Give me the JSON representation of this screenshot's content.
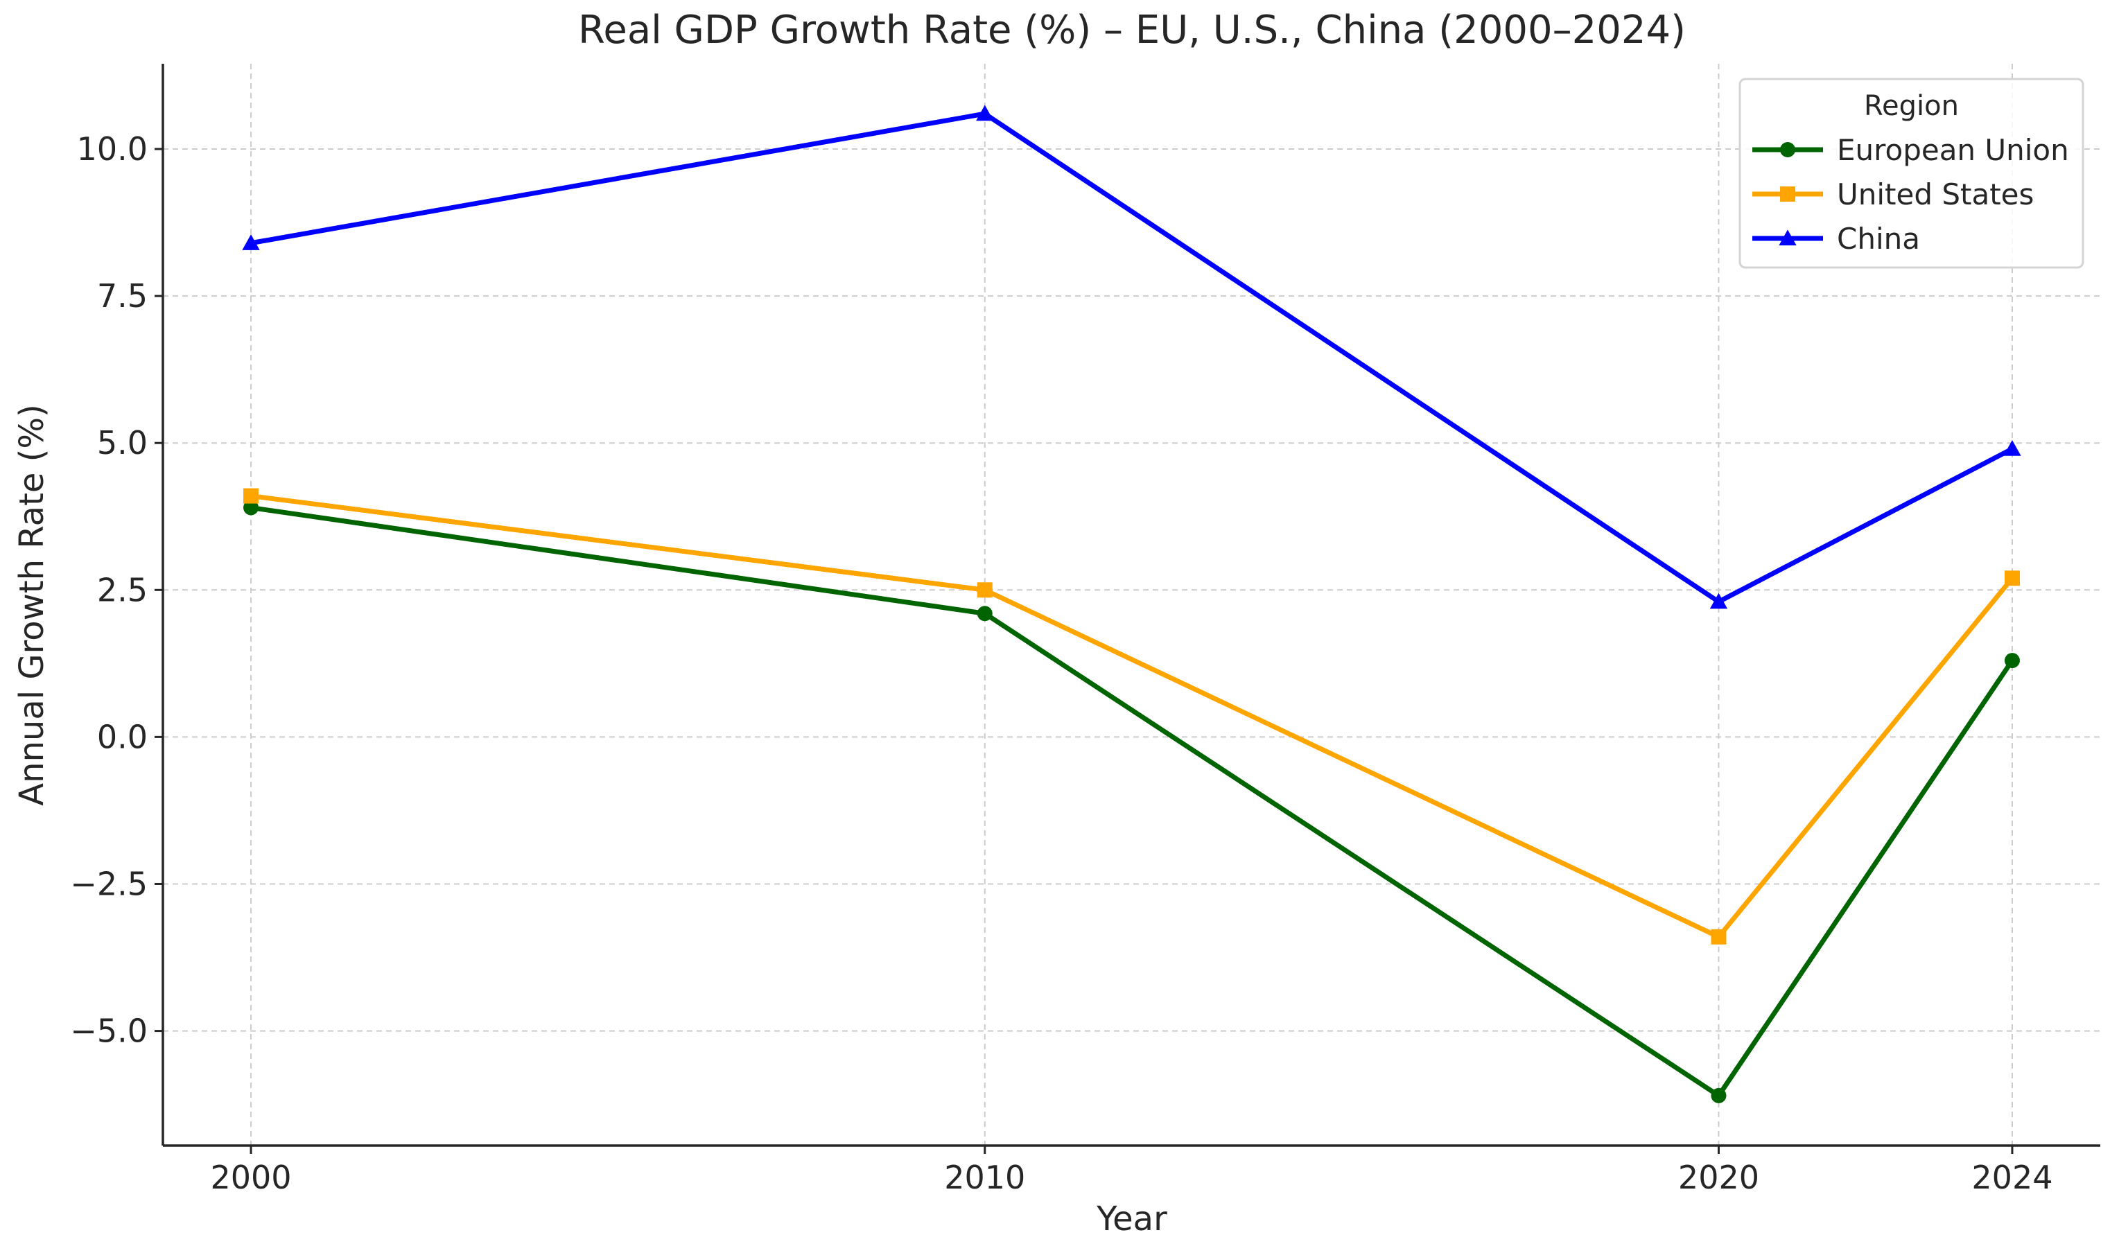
{
  "chart_data": {
    "type": "line",
    "title": "Real GDP Growth Rate (%) – EU, U.S., China (2000–2024)",
    "xlabel": "Year",
    "ylabel": "Annual Growth Rate (%)",
    "x": [
      2000,
      2010,
      2020,
      2024
    ],
    "x_tick_labels": [
      "2000",
      "2010",
      "2020",
      "2024"
    ],
    "xlim": [
      1998.8,
      2025.2
    ],
    "ylim": [
      -6.95,
      11.45
    ],
    "y_ticks": [
      -5.0,
      -2.5,
      0.0,
      2.5,
      5.0,
      7.5,
      10.0
    ],
    "y_tick_labels": [
      "−5.0",
      "−2.5",
      "0.0",
      "2.5",
      "5.0",
      "7.5",
      "10.0"
    ],
    "grid": true,
    "legend": {
      "title": "Region",
      "placement": "top-right"
    },
    "series": [
      {
        "name": "European Union",
        "color": "#006400",
        "marker": "circle",
        "values": [
          3.9,
          2.1,
          -6.1,
          1.3
        ]
      },
      {
        "name": "United States",
        "color": "#ffa500",
        "marker": "square",
        "values": [
          4.1,
          2.5,
          -3.4,
          2.7
        ]
      },
      {
        "name": "China",
        "color": "#0000ff",
        "marker": "triangle",
        "values": [
          8.4,
          10.6,
          2.3,
          4.9
        ]
      }
    ]
  }
}
